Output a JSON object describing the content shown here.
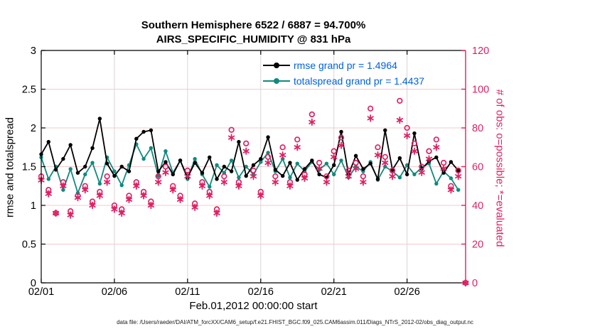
{
  "title": {
    "line1": "Southern Hemisphere 6522 / 6887 = 94.700%",
    "line2": "AIRS_SPECIFIC_HUMIDITY @ 831 hPa"
  },
  "legend": {
    "entries": [
      {
        "label": "rmse grand pr = 1.4964",
        "series": "rmse"
      },
      {
        "label": "totalspread grand pr = 1.4437",
        "series": "totalspread"
      }
    ]
  },
  "footer_text": "data file: /Users/raeder/DAI/ATM_forcXX/CAM6_setup/f.e21.FHIST_BGC.f09_025.CAM6assim.011/Diags_NTrS_2012-02/obs_diag_output.nc",
  "colors": {
    "rmse": "#000000",
    "totalspread": "#108a7e",
    "obs": "#df2063",
    "legend_text": "#0062e0",
    "grid_horizontal": "#f6c8cd",
    "grid_vertical": "#ddd3d4",
    "axis": "#000000"
  },
  "chart_data": {
    "type": "line",
    "title": "Southern Hemisphere 6522 / 6887 = 94.700%",
    "subtitle": "AIRS_SPECIFIC_HUMIDITY @ 831 hPa",
    "xlabel": "Feb.01,2012 00:00:00 start",
    "x_axis": {
      "label": "Feb.01,2012 00:00:00 start",
      "tick_days": [
        0,
        5,
        10,
        15,
        20,
        25
      ],
      "tick_labels": [
        "02/01",
        "02/06",
        "02/11",
        "02/16",
        "02/21",
        "02/26"
      ],
      "range_days": [
        0,
        29
      ],
      "x_start_day": 0,
      "x_step_days": 0.5
    },
    "left_axis": {
      "label": "rmse and totalspread",
      "ticks": [
        0,
        0.5,
        1,
        1.5,
        2,
        2.5,
        3
      ],
      "range": [
        0,
        3
      ]
    },
    "right_axis": {
      "label": "# of obs: o=possible; *=evaluated",
      "ticks": [
        0,
        20,
        40,
        60,
        80,
        100,
        120
      ],
      "range": [
        0,
        120
      ]
    },
    "grid": true,
    "legend_position": "top-center-inside",
    "series": [
      {
        "name": "rmse",
        "axis": "left",
        "marker": "filled-circle",
        "grand_pr": 1.4964,
        "values": [
          1.66,
          1.82,
          1.46,
          1.6,
          1.78,
          1.42,
          1.5,
          1.74,
          2.12,
          1.54,
          1.38,
          1.5,
          1.44,
          1.86,
          1.95,
          1.97,
          1.44,
          1.56,
          1.4,
          1.58,
          1.36,
          1.55,
          1.42,
          1.62,
          1.34,
          1.5,
          1.44,
          1.82,
          1.38,
          1.52,
          1.6,
          1.88,
          1.46,
          1.38,
          1.55,
          1.33,
          1.47,
          1.58,
          1.4,
          1.36,
          1.52,
          1.95,
          1.4,
          1.64,
          1.47,
          1.54,
          1.34,
          1.97,
          1.46,
          1.61,
          1.4,
          1.93,
          1.47,
          1.57,
          1.62,
          1.42,
          1.56,
          1.45
        ]
      },
      {
        "name": "totalspread",
        "axis": "left",
        "marker": "filled-circle",
        "grand_pr": 1.4437,
        "values": [
          1.62,
          1.34,
          1.5,
          1.2,
          1.47,
          1.16,
          1.4,
          1.55,
          1.28,
          1.62,
          1.44,
          1.26,
          1.52,
          1.79,
          1.6,
          1.74,
          1.38,
          1.7,
          1.42,
          1.58,
          1.34,
          1.6,
          1.4,
          1.24,
          1.52,
          1.42,
          1.58,
          1.36,
          1.5,
          1.4,
          1.56,
          1.68,
          1.44,
          1.6,
          1.36,
          1.54,
          1.44,
          1.56,
          1.46,
          1.54,
          1.4,
          1.58,
          1.36,
          1.5,
          1.44,
          1.56,
          1.33,
          1.5,
          1.44,
          1.36,
          1.52,
          1.4,
          1.49,
          1.54,
          1.28,
          1.44,
          1.35,
          1.2
        ]
      },
      {
        "name": "possible_obs",
        "axis": "right",
        "marker": "open-circle",
        "values": [
          55,
          48,
          36,
          52,
          37,
          45,
          50,
          42,
          47,
          55,
          40,
          38,
          45,
          52,
          47,
          42,
          55,
          60,
          50,
          45,
          58,
          41,
          52,
          47,
          38,
          55,
          79,
          52,
          72,
          58,
          47,
          65,
          55,
          70,
          52,
          74,
          56,
          87,
          62,
          55,
          68,
          75,
          58,
          62,
          55,
          90,
          70,
          65,
          58,
          94,
          80,
          72,
          60,
          68,
          74,
          62,
          50,
          58,
          0
        ]
      },
      {
        "name": "evaluated_obs",
        "axis": "right",
        "marker": "asterisk",
        "values": [
          53,
          46,
          36,
          50,
          35,
          44,
          48,
          40,
          45,
          52,
          38,
          36,
          43,
          50,
          45,
          40,
          52,
          57,
          48,
          43,
          55,
          39,
          50,
          45,
          36,
          52,
          75,
          50,
          68,
          55,
          45,
          62,
          52,
          66,
          50,
          70,
          54,
          83,
          59,
          52,
          65,
          71,
          55,
          59,
          52,
          85,
          66,
          62,
          55,
          84,
          76,
          68,
          57,
          64,
          70,
          59,
          48,
          55,
          0
        ]
      }
    ]
  }
}
